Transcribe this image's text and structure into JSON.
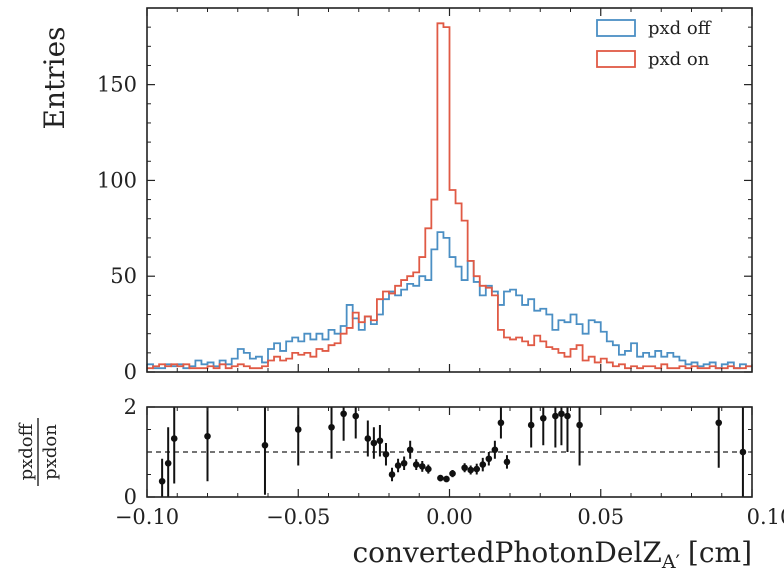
{
  "chart_data": [
    {
      "type": "step",
      "panel": "main",
      "ylabel": "Entries",
      "xlim": [
        -0.1,
        0.1
      ],
      "ylim": [
        0,
        190
      ],
      "yticks": [
        0,
        50,
        100,
        150
      ],
      "ytick_labels": [
        "0",
        "50",
        "100",
        "150"
      ],
      "legend_position": "top-right",
      "bin_edges": [
        -0.1,
        -0.098,
        -0.096,
        -0.094,
        -0.092,
        -0.09,
        -0.088,
        -0.086,
        -0.084,
        -0.082,
        -0.08,
        -0.078,
        -0.076,
        -0.074,
        -0.072,
        -0.07,
        -0.068,
        -0.066,
        -0.064,
        -0.062,
        -0.06,
        -0.058,
        -0.056,
        -0.054,
        -0.052,
        -0.05,
        -0.048,
        -0.046,
        -0.044,
        -0.042,
        -0.04,
        -0.038,
        -0.036,
        -0.034,
        -0.032,
        -0.03,
        -0.028,
        -0.026,
        -0.024,
        -0.022,
        -0.02,
        -0.018,
        -0.016,
        -0.014,
        -0.012,
        -0.01,
        -0.008,
        -0.006,
        -0.004,
        -0.002,
        0.0,
        0.002,
        0.004,
        0.006,
        0.008,
        0.01,
        0.012,
        0.014,
        0.016,
        0.018,
        0.02,
        0.022,
        0.024,
        0.026,
        0.028,
        0.03,
        0.032,
        0.034,
        0.036,
        0.038,
        0.04,
        0.042,
        0.044,
        0.046,
        0.048,
        0.05,
        0.052,
        0.054,
        0.056,
        0.058,
        0.06,
        0.062,
        0.064,
        0.066,
        0.068,
        0.07,
        0.072,
        0.074,
        0.076,
        0.078,
        0.08,
        0.082,
        0.084,
        0.086,
        0.088,
        0.09,
        0.092,
        0.094,
        0.096,
        0.098,
        0.1
      ],
      "series": [
        {
          "name": "pxd off",
          "color": "#4b8fc4",
          "values": [
            4,
            2,
            2,
            4,
            3,
            4,
            2,
            3,
            6,
            4,
            5,
            3,
            6,
            4,
            7,
            12,
            10,
            7,
            8,
            5,
            12,
            15,
            11,
            16,
            18,
            16,
            20,
            17,
            20,
            17,
            22,
            20,
            24,
            35,
            28,
            22,
            29,
            25,
            30,
            38,
            42,
            40,
            43,
            46,
            45,
            50,
            48,
            64,
            73,
            70,
            60,
            55,
            48,
            58,
            47,
            40,
            45,
            42,
            35,
            42,
            43,
            40,
            35,
            38,
            32,
            33,
            30,
            22,
            27,
            26,
            30,
            25,
            20,
            27,
            26,
            21,
            16,
            14,
            9,
            11,
            15,
            8,
            10,
            8,
            11,
            8,
            10,
            8,
            6,
            4,
            5,
            3,
            4,
            5,
            2,
            4,
            5,
            2,
            4,
            3
          ]
        },
        {
          "name": "pxd on",
          "color": "#e05a45",
          "values": [
            2,
            3,
            4,
            3,
            4,
            3,
            4,
            2,
            2,
            2,
            3,
            2,
            4,
            2,
            3,
            4,
            3,
            2,
            2,
            3,
            6,
            8,
            6,
            7,
            10,
            9,
            10,
            8,
            12,
            11,
            14,
            15,
            20,
            23,
            31,
            26,
            29,
            27,
            38,
            42,
            41,
            45,
            48,
            50,
            52,
            60,
            75,
            90,
            182,
            180,
            95,
            88,
            79,
            58,
            50,
            45,
            44,
            40,
            22,
            18,
            17,
            18,
            16,
            14,
            19,
            16,
            13,
            12,
            10,
            8,
            12,
            14,
            6,
            8,
            5,
            7,
            5,
            3,
            4,
            2,
            3,
            2,
            3,
            3,
            2,
            4,
            2,
            2,
            3,
            2,
            3,
            2,
            2,
            3,
            2,
            2,
            3,
            2,
            2,
            3
          ]
        }
      ]
    },
    {
      "type": "scatter",
      "panel": "ratio",
      "xlabel_main": "convertedPhotonDelZ",
      "xlabel_sub": "A′",
      "xlabel_unit": "[cm]",
      "ylabel_num": "pxdoff",
      "ylabel_den": "pxdon",
      "xlim": [
        -0.1,
        0.1
      ],
      "ylim": [
        0,
        2
      ],
      "xticks": [
        -0.1,
        -0.05,
        0.0,
        0.05,
        0.1
      ],
      "xtick_labels": [
        "−0.10",
        "−0.05",
        "0.00",
        "0.05",
        "0.10"
      ],
      "yticks": [
        0,
        2
      ],
      "ytick_labels": [
        "0",
        "2"
      ],
      "reference_line": 1,
      "points": [
        {
          "x": -0.095,
          "y": 0.35,
          "err": 0.5
        },
        {
          "x": -0.093,
          "y": 0.75,
          "err": 0.8
        },
        {
          "x": -0.091,
          "y": 1.3,
          "err": 1.0
        },
        {
          "x": -0.08,
          "y": 1.35,
          "err": 1.0
        },
        {
          "x": -0.061,
          "y": 1.15,
          "err": 1.1
        },
        {
          "x": -0.05,
          "y": 1.5,
          "err": 0.8
        },
        {
          "x": -0.039,
          "y": 1.55,
          "err": 0.7
        },
        {
          "x": -0.035,
          "y": 1.85,
          "err": 0.6
        },
        {
          "x": -0.031,
          "y": 1.8,
          "err": 0.5
        },
        {
          "x": -0.027,
          "y": 1.3,
          "err": 0.4
        },
        {
          "x": -0.025,
          "y": 1.2,
          "err": 0.35
        },
        {
          "x": -0.023,
          "y": 1.25,
          "err": 0.35
        },
        {
          "x": -0.021,
          "y": 0.95,
          "err": 0.25
        },
        {
          "x": -0.019,
          "y": 0.5,
          "err": 0.15
        },
        {
          "x": -0.017,
          "y": 0.7,
          "err": 0.15
        },
        {
          "x": -0.015,
          "y": 0.75,
          "err": 0.15
        },
        {
          "x": -0.013,
          "y": 1.05,
          "err": 0.2
        },
        {
          "x": -0.011,
          "y": 0.72,
          "err": 0.12
        },
        {
          "x": -0.009,
          "y": 0.68,
          "err": 0.12
        },
        {
          "x": -0.007,
          "y": 0.62,
          "err": 0.1
        },
        {
          "x": -0.003,
          "y": 0.42,
          "err": 0.07
        },
        {
          "x": -0.001,
          "y": 0.4,
          "err": 0.07
        },
        {
          "x": 0.001,
          "y": 0.52,
          "err": 0.08
        },
        {
          "x": 0.005,
          "y": 0.65,
          "err": 0.1
        },
        {
          "x": 0.007,
          "y": 0.6,
          "err": 0.1
        },
        {
          "x": 0.009,
          "y": 0.62,
          "err": 0.12
        },
        {
          "x": 0.011,
          "y": 0.72,
          "err": 0.15
        },
        {
          "x": 0.013,
          "y": 0.85,
          "err": 0.15
        },
        {
          "x": 0.015,
          "y": 1.05,
          "err": 0.2
        },
        {
          "x": 0.017,
          "y": 1.65,
          "err": 0.35
        },
        {
          "x": 0.019,
          "y": 0.78,
          "err": 0.15
        },
        {
          "x": 0.027,
          "y": 1.6,
          "err": 0.5
        },
        {
          "x": 0.031,
          "y": 1.75,
          "err": 0.6
        },
        {
          "x": 0.035,
          "y": 1.8,
          "err": 0.7
        },
        {
          "x": 0.037,
          "y": 1.85,
          "err": 0.7
        },
        {
          "x": 0.039,
          "y": 1.8,
          "err": 0.8
        },
        {
          "x": 0.043,
          "y": 1.6,
          "err": 0.9
        },
        {
          "x": 0.089,
          "y": 1.65,
          "err": 1.0
        },
        {
          "x": 0.097,
          "y": 1.0,
          "err": 1.2
        }
      ]
    }
  ]
}
